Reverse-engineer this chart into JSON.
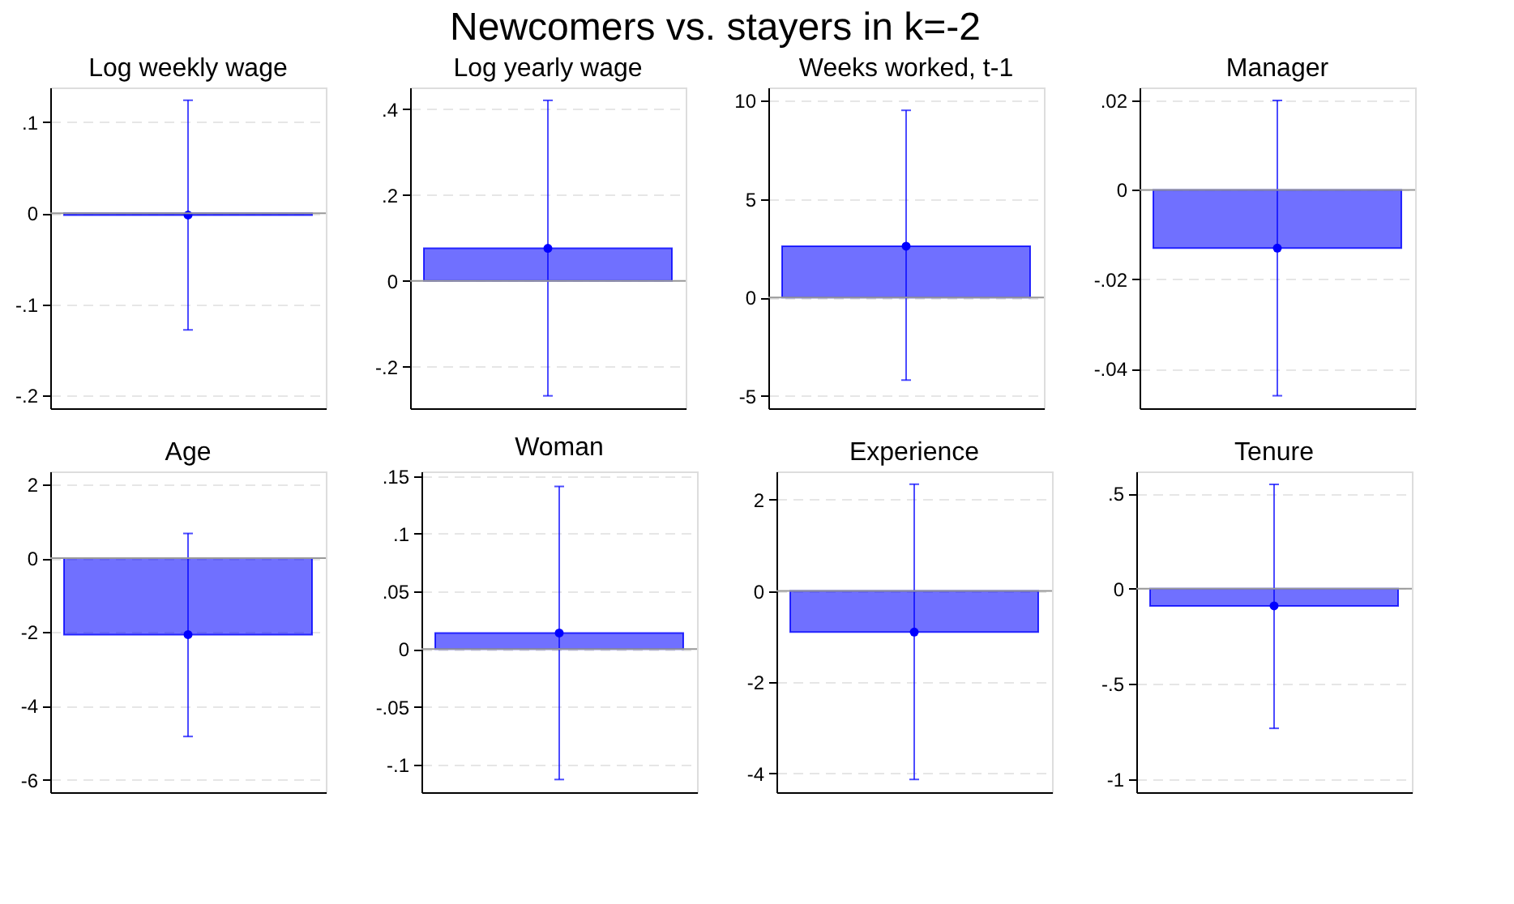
{
  "chart_data": [
    {
      "type": "bar",
      "title": "Log weekly wage",
      "categories": [
        null
      ],
      "series": [
        {
          "type": "bar",
          "values": [
            -0.002
          ],
          "color": "#0000ff"
        },
        {
          "type": "scatter",
          "values": [
            -0.002
          ],
          "errors": [
            [
              -0.128,
              0.124
            ]
          ],
          "color": "#0000ff",
          "marker": "circle"
        }
      ],
      "grid": "y",
      "tick_labels": "y",
      "ylim": [
        -0.214,
        0.138
      ],
      "yticks": [
        {
          "value": -0.2,
          "label": "-.2"
        },
        {
          "value": -0.1,
          "label": "-.1"
        },
        0,
        {
          "value": 0.1,
          "label": ".1"
        }
      ],
      "ref_lines": [
        {
          "axis": "y",
          "value": 0,
          "color": "#999999"
        }
      ]
    },
    {
      "type": "bar",
      "title": "Log yearly wage",
      "categories": [
        null
      ],
      "series": [
        {
          "type": "bar",
          "values": [
            0.076
          ],
          "color": "#0000ff"
        },
        {
          "type": "scatter",
          "values": [
            0.076
          ],
          "errors": [
            [
              -0.268,
              0.421
            ]
          ],
          "color": "#0000ff",
          "marker": "circle"
        }
      ],
      "grid": "y",
      "tick_labels": "y",
      "ylim": [
        -0.297,
        0.451
      ],
      "yticks": [
        {
          "value": -0.2,
          "label": "-.2"
        },
        0,
        {
          "value": 0.2,
          "label": ".2"
        },
        {
          "value": 0.4,
          "label": ".4"
        }
      ],
      "ref_lines": [
        {
          "axis": "y",
          "value": 0,
          "color": "#999999"
        }
      ]
    },
    {
      "type": "bar",
      "title": "Weeks worked, t-1",
      "categories": [
        null
      ],
      "series": [
        {
          "type": "bar",
          "values": [
            2.6
          ],
          "color": "#0000ff"
        },
        {
          "type": "scatter",
          "values": [
            2.6
          ],
          "errors": [
            [
              -4.2,
              9.5
            ]
          ],
          "color": "#0000ff",
          "marker": "circle"
        }
      ],
      "grid": "y",
      "tick_labels": "y",
      "ylim": [
        -5.63,
        10.66
      ],
      "yticks": [
        -5,
        0,
        5,
        10
      ],
      "ref_lines": [
        {
          "axis": "y",
          "value": 0,
          "color": "#999999"
        }
      ]
    },
    {
      "type": "bar",
      "title": "Manager",
      "categories": [
        null
      ],
      "series": [
        {
          "type": "bar",
          "values": [
            -0.013
          ],
          "color": "#0000ff"
        },
        {
          "type": "scatter",
          "values": [
            -0.013
          ],
          "errors": [
            [
              -0.046,
              0.02
            ]
          ],
          "color": "#0000ff",
          "marker": "circle"
        }
      ],
      "grid": "y",
      "tick_labels": "y",
      "ylim": [
        -0.0488,
        0.0229
      ],
      "yticks": [
        {
          "value": -0.04,
          "label": "-.04"
        },
        {
          "value": -0.02,
          "label": "-.02"
        },
        0,
        {
          "value": 0.02,
          "label": ".02"
        }
      ],
      "ref_lines": [
        {
          "axis": "y",
          "value": 0,
          "color": "#999999"
        }
      ]
    },
    {
      "type": "bar",
      "title": "Age",
      "categories": [
        null
      ],
      "series": [
        {
          "type": "bar",
          "values": [
            -2.07
          ],
          "color": "#0000ff"
        },
        {
          "type": "scatter",
          "values": [
            -2.07
          ],
          "errors": [
            [
              -4.83,
              0.67
            ]
          ],
          "color": "#0000ff",
          "marker": "circle"
        }
      ],
      "grid": "y",
      "tick_labels": "y",
      "ylim": [
        -6.34,
        2.35
      ],
      "yticks": [
        -6,
        -4,
        -2,
        0,
        2
      ],
      "ref_lines": [
        {
          "axis": "y",
          "value": 0,
          "color": "#999999"
        }
      ]
    },
    {
      "type": "bar",
      "title": "Woman",
      "categories": [
        null
      ],
      "series": [
        {
          "type": "bar",
          "values": [
            0.014
          ],
          "color": "#0000ff"
        },
        {
          "type": "scatter",
          "values": [
            0.014
          ],
          "errors": [
            [
              -0.113,
              0.141
            ]
          ],
          "color": "#0000ff",
          "marker": "circle"
        }
      ],
      "grid": "y",
      "tick_labels": "y",
      "ylim": [
        -0.124,
        0.154
      ],
      "yticks": [
        {
          "value": -0.1,
          "label": "-.1"
        },
        {
          "value": -0.05,
          "label": "-.05"
        },
        0,
        {
          "value": 0.05,
          "label": ".05"
        },
        {
          "value": 0.1,
          "label": ".1"
        },
        {
          "value": 0.15,
          "label": ".15"
        }
      ],
      "ref_lines": [
        {
          "axis": "y",
          "value": 0,
          "color": "#999999"
        }
      ]
    },
    {
      "type": "bar",
      "title": "Experience",
      "categories": [
        null
      ],
      "series": [
        {
          "type": "bar",
          "values": [
            -0.9
          ],
          "color": "#0000ff"
        },
        {
          "type": "scatter",
          "values": [
            -0.9
          ],
          "errors": [
            [
              -4.13,
              2.34
            ]
          ],
          "color": "#0000ff",
          "marker": "circle"
        }
      ],
      "grid": "y",
      "tick_labels": "y",
      "ylim": [
        -4.41,
        2.62
      ],
      "yticks": [
        -4,
        -2,
        0,
        2
      ],
      "ref_lines": [
        {
          "axis": "y",
          "value": 0,
          "color": "#999999"
        }
      ]
    },
    {
      "type": "bar",
      "title": "Tenure",
      "categories": [
        null
      ],
      "series": [
        {
          "type": "bar",
          "values": [
            -0.09
          ],
          "color": "#0000ff"
        },
        {
          "type": "scatter",
          "values": [
            -0.09
          ],
          "errors": [
            [
              -0.734,
              0.549
            ]
          ],
          "color": "#0000ff",
          "marker": "circle"
        }
      ],
      "grid": "y",
      "tick_labels": "y",
      "ylim": [
        -1.07,
        0.617
      ],
      "yticks": [
        -1,
        {
          "value": -0.5,
          "label": "-.5"
        },
        0,
        {
          "value": 0.5,
          "label": ".5"
        }
      ],
      "ref_lines": [
        {
          "axis": "y",
          "value": 0,
          "color": "#999999"
        }
      ]
    },
    {
      "type": "other",
      "title": "Newcomers vs. stayers in k=-2"
    }
  ]
}
